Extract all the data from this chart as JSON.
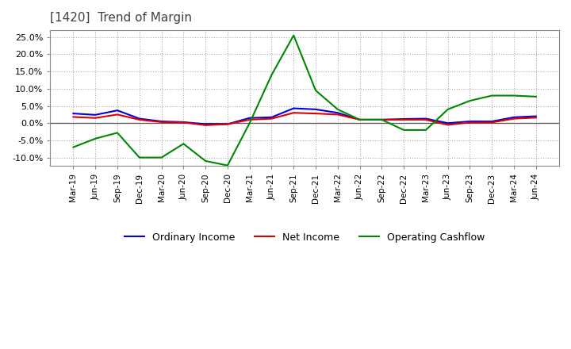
{
  "title": "[1420]  Trend of Margin",
  "title_color": "#404040",
  "background_color": "#ffffff",
  "grid_color": "#aaaaaa",
  "ylim": [
    -0.125,
    0.27
  ],
  "yticks": [
    -0.1,
    -0.05,
    0.0,
    0.05,
    0.1,
    0.15,
    0.2,
    0.25
  ],
  "x_labels": [
    "Mar-19",
    "Jun-19",
    "Sep-19",
    "Dec-19",
    "Mar-20",
    "Jun-20",
    "Sep-20",
    "Dec-20",
    "Mar-21",
    "Jun-21",
    "Sep-21",
    "Dec-21",
    "Mar-22",
    "Jun-22",
    "Sep-22",
    "Dec-22",
    "Mar-23",
    "Jun-23",
    "Sep-23",
    "Dec-23",
    "Mar-24",
    "Jun-24"
  ],
  "ordinary_income": [
    0.028,
    0.024,
    0.037,
    0.013,
    0.005,
    0.003,
    -0.003,
    -0.003,
    0.015,
    0.017,
    0.043,
    0.04,
    0.03,
    0.01,
    0.01,
    0.012,
    0.013,
    0.0,
    0.005,
    0.005,
    0.017,
    0.02
  ],
  "net_income": [
    0.018,
    0.015,
    0.025,
    0.01,
    0.003,
    0.002,
    -0.006,
    -0.003,
    0.01,
    0.013,
    0.03,
    0.028,
    0.025,
    0.01,
    0.01,
    0.01,
    0.01,
    -0.005,
    0.002,
    0.002,
    0.013,
    0.016
  ],
  "operating_cashflow": [
    -0.07,
    -0.045,
    -0.028,
    -0.1,
    -0.1,
    -0.06,
    -0.11,
    -0.123,
    0.0,
    0.14,
    0.255,
    0.095,
    0.04,
    0.01,
    0.01,
    -0.02,
    -0.02,
    0.04,
    0.065,
    0.08,
    0.08,
    0.077
  ],
  "ordinary_income_color": "#0000dd",
  "net_income_color": "#dd0000",
  "operating_cashflow_color": "#008800",
  "line_width": 1.5
}
